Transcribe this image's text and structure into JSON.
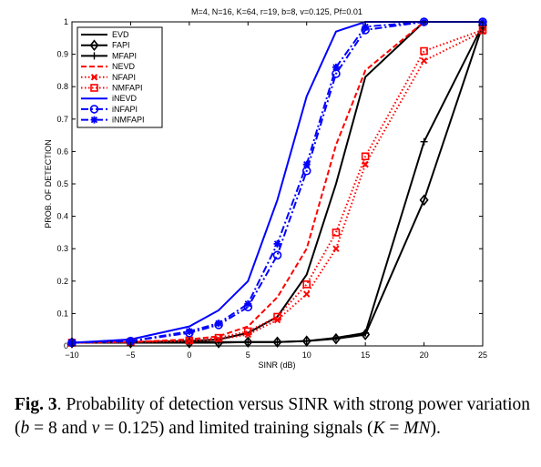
{
  "chart_data": {
    "type": "line",
    "title": "M=4, N=16, K=64, r=19, b=8, v=0.125, Pf=0.01",
    "xlabel": "SINR (dB)",
    "ylabel": "PROB. OF DETECTION",
    "xlim": [
      -10,
      25
    ],
    "ylim": [
      0,
      1
    ],
    "xticks": [
      -10,
      -5,
      0,
      5,
      10,
      15,
      20,
      25
    ],
    "yticks": [
      0,
      0.1,
      0.2,
      0.3,
      0.4,
      0.5,
      0.6,
      0.7,
      0.8,
      0.9,
      1
    ],
    "grid": false,
    "legend_position": "top-left",
    "series": [
      {
        "name": "EVD",
        "color": "#000000",
        "dash": "solid",
        "marker": "none",
        "x": [
          -10,
          -5,
          0,
          2.5,
          5,
          7.5,
          10,
          12.5,
          15,
          20,
          25
        ],
        "y": [
          0.01,
          0.012,
          0.015,
          0.02,
          0.04,
          0.09,
          0.22,
          0.5,
          0.83,
          1.0,
          1.0
        ]
      },
      {
        "name": "FAPI",
        "color": "#000000",
        "dash": "solid",
        "marker": "diamond",
        "x": [
          -10,
          -5,
          0,
          2.5,
          5,
          7.5,
          10,
          12.5,
          15,
          20,
          25
        ],
        "y": [
          0.01,
          0.01,
          0.01,
          0.01,
          0.012,
          0.012,
          0.015,
          0.022,
          0.035,
          0.45,
          0.99
        ]
      },
      {
        "name": "MFAPI",
        "color": "#000000",
        "dash": "solid",
        "marker": "plus",
        "x": [
          -10,
          -5,
          0,
          2.5,
          5,
          7.5,
          10,
          12.5,
          15,
          20,
          25
        ],
        "y": [
          0.01,
          0.01,
          0.012,
          0.012,
          0.012,
          0.012,
          0.015,
          0.025,
          0.04,
          0.63,
          0.99
        ]
      },
      {
        "name": "NEVD",
        "color": "#ff0000",
        "dash": "dash",
        "marker": "none",
        "x": [
          -10,
          -5,
          0,
          2.5,
          5,
          7.5,
          10,
          12.5,
          15,
          20,
          25
        ],
        "y": [
          0.01,
          0.012,
          0.02,
          0.03,
          0.06,
          0.15,
          0.3,
          0.62,
          0.85,
          1.0,
          1.0
        ]
      },
      {
        "name": "NFAPI",
        "color": "#ff0000",
        "dash": "dot",
        "marker": "x",
        "x": [
          -10,
          -5,
          0,
          2.5,
          5,
          7.5,
          10,
          12.5,
          15,
          20,
          25
        ],
        "y": [
          0.01,
          0.012,
          0.015,
          0.02,
          0.035,
          0.08,
          0.16,
          0.3,
          0.56,
          0.88,
          0.97
        ]
      },
      {
        "name": "NMFAPI",
        "color": "#ff0000",
        "dash": "dot",
        "marker": "square",
        "x": [
          -10,
          -5,
          0,
          2.5,
          5,
          7.5,
          10,
          12.5,
          15,
          20,
          25
        ],
        "y": [
          0.01,
          0.012,
          0.017,
          0.025,
          0.045,
          0.09,
          0.19,
          0.35,
          0.585,
          0.91,
          0.975
        ]
      },
      {
        "name": "iNEVD",
        "color": "#0000ff",
        "dash": "solid",
        "marker": "none",
        "x": [
          -10,
          -5,
          0,
          2.5,
          5,
          7.5,
          10,
          12.5,
          15,
          20,
          25
        ],
        "y": [
          0.01,
          0.02,
          0.06,
          0.11,
          0.2,
          0.45,
          0.77,
          0.97,
          1.0,
          1.0,
          1.0
        ]
      },
      {
        "name": "iNFAPI",
        "color": "#0000ff",
        "dash": "dashdot",
        "marker": "circle",
        "x": [
          -10,
          -5,
          0,
          2.5,
          5,
          7.5,
          10,
          12.5,
          15,
          20,
          25
        ],
        "y": [
          0.01,
          0.015,
          0.04,
          0.065,
          0.12,
          0.28,
          0.54,
          0.84,
          0.975,
          1.0,
          1.0
        ]
      },
      {
        "name": "iNMFAPI",
        "color": "#0000ff",
        "dash": "dashdot",
        "marker": "star",
        "x": [
          -10,
          -5,
          0,
          2.5,
          5,
          7.5,
          10,
          12.5,
          15,
          20,
          25
        ],
        "y": [
          0.01,
          0.015,
          0.045,
          0.07,
          0.13,
          0.315,
          0.56,
          0.86,
          0.985,
          1.0,
          1.0
        ]
      }
    ]
  },
  "caption": {
    "label": "Fig. 3",
    "text_1": ". Probability of detection versus SINR with strong power variation (",
    "b_sym": "b",
    "text_2": " = 8 and ",
    "v_sym": "v",
    "text_3": " = 0.125) and limited training signals (",
    "K_sym": "K",
    "text_4": " = ",
    "MN_sym": "MN",
    "text_5": ")."
  }
}
